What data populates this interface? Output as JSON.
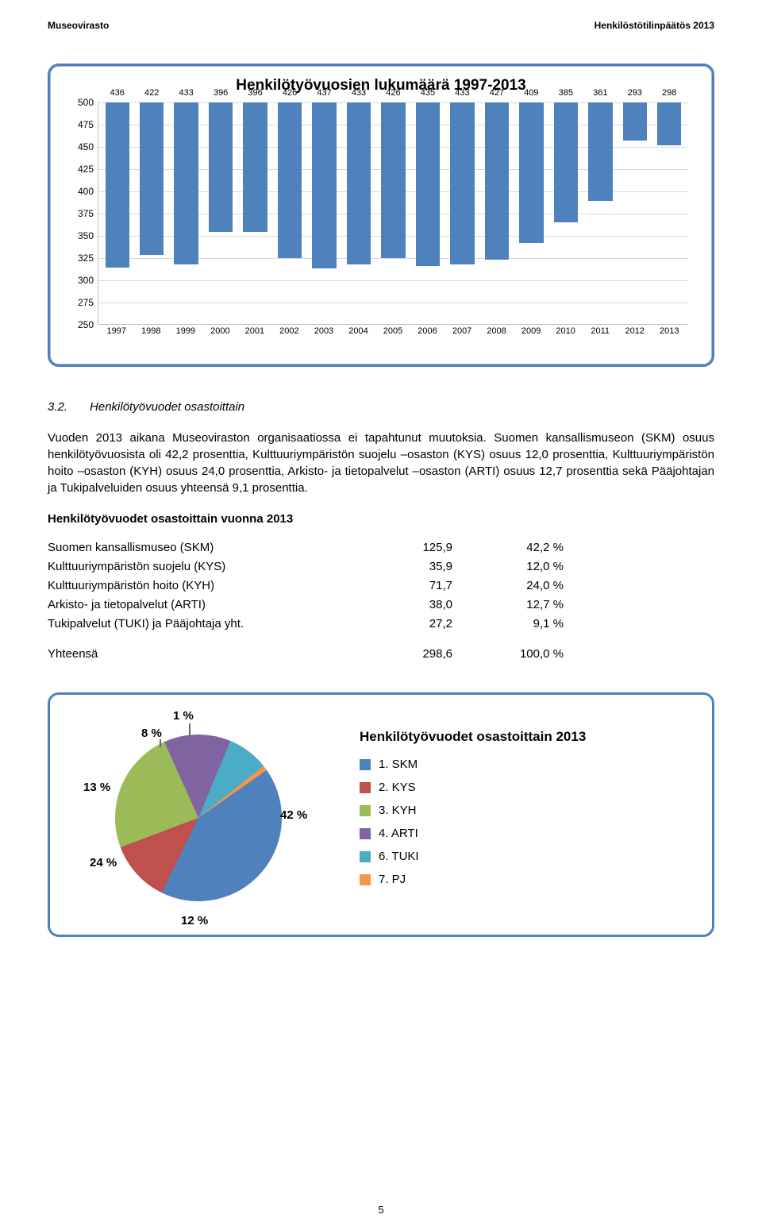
{
  "header": {
    "left": "Museovirasto",
    "right": "Henkilöstötilinpäätös 2013"
  },
  "bar_chart": {
    "type": "bar",
    "title": "Henkilötyövuosien lukumäärä 1997-2013",
    "years": [
      "1997",
      "1998",
      "1999",
      "2000",
      "2001",
      "2002",
      "2003",
      "2004",
      "2005",
      "2006",
      "2007",
      "2008",
      "2009",
      "2010",
      "2011",
      "2012",
      "2013"
    ],
    "values": [
      436,
      422,
      433,
      396,
      396,
      426,
      437,
      433,
      426,
      435,
      433,
      427,
      409,
      385,
      361,
      293,
      298
    ],
    "ylim": [
      250,
      500
    ],
    "ytick_step": 25,
    "yticks": [
      250,
      275,
      300,
      325,
      350,
      375,
      400,
      425,
      450,
      475,
      500
    ],
    "bar_color": "#4f81bd",
    "grid_color": "#d9d9d9",
    "axis_color": "#bfbfbf",
    "background_color": "#ffffff",
    "bar_width": 0.7,
    "label_fontsize": 11
  },
  "section": {
    "number": "3.2.",
    "title": "Henkilötyövuodet osastoittain",
    "p1": "Vuoden 2013 aikana Museoviraston organisaatiossa ei tapahtunut muutoksia. Suomen kansallismuseon (SKM) osuus henkilötyövuosista oli 42,2 prosenttia, Kulttuuriympäristön suojelu –osaston (KYS) osuus 12,0 prosenttia, Kulttuuriympäristön hoito –osaston (KYH) osuus 24,0 prosenttia, Arkisto- ja tietopalvelut –osaston (ARTI) osuus 12,7 prosenttia sekä Pääjohtajan ja Tukipalveluiden osuus yhteensä 9,1 prosenttia.",
    "subtitle": "Henkilötyövuodet osastoittain vuonna 2013",
    "table": {
      "rows": [
        {
          "label": "Suomen kansallismuseo (SKM)",
          "value": "125,9",
          "pct": "42,2 %"
        },
        {
          "label": "Kulttuuriympäristön suojelu (KYS)",
          "value": "35,9",
          "pct": "12,0 %"
        },
        {
          "label": "Kulttuuriympäristön hoito (KYH)",
          "value": "71,7",
          "pct": "24,0 %"
        },
        {
          "label": "Arkisto- ja tietopalvelut (ARTI)",
          "value": "38,0",
          "pct": "12,7 %"
        },
        {
          "label": "Tukipalvelut (TUKI) ja Pääjohtaja yht.",
          "value": "27,2",
          "pct": "9,1 %"
        }
      ],
      "total": {
        "label": "Yhteensä",
        "value": "298,6",
        "pct": "100,0 %"
      }
    }
  },
  "pie_chart": {
    "type": "pie",
    "title": "Henkilötyövuodet osastoittain 2013",
    "slices": [
      {
        "name": "1. SKM",
        "pct": 42,
        "label": "42 %",
        "color": "#4f81bd"
      },
      {
        "name": "2. KYS",
        "pct": 12,
        "label": "12 %",
        "color": "#c0504d"
      },
      {
        "name": "3. KYH",
        "pct": 24,
        "label": "24 %",
        "color": "#9bbb59"
      },
      {
        "name": "4. ARTI",
        "pct": 13,
        "label": "13 %",
        "color": "#8064a2"
      },
      {
        "name": "6. TUKI",
        "pct": 8,
        "label": "8 %",
        "color": "#4bacc6"
      },
      {
        "name": "7. PJ",
        "pct": 1,
        "label": "1 %",
        "color": "#f79646"
      }
    ],
    "border_color": "#ffffff",
    "legend_fontsize": 15
  },
  "page_number": "5"
}
